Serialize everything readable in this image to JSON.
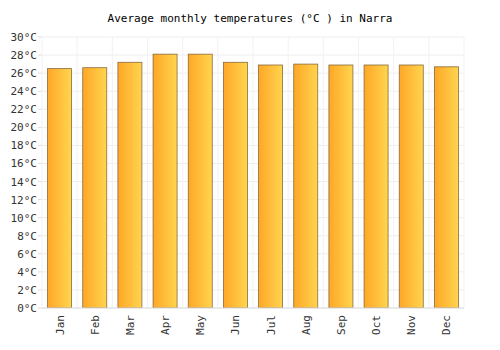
{
  "chart_data": {
    "type": "bar",
    "title": "Average monthly temperatures (°C ) in Narra",
    "categories": [
      "Jan",
      "Feb",
      "Mar",
      "Apr",
      "May",
      "Jun",
      "Jul",
      "Aug",
      "Sep",
      "Oct",
      "Nov",
      "Dec"
    ],
    "values": [
      26.5,
      26.6,
      27.2,
      28.1,
      28.1,
      27.2,
      26.9,
      27.0,
      26.9,
      26.9,
      26.9,
      26.7
    ],
    "color": "#ffa726",
    "ylim": [
      0,
      30
    ],
    "yticks": [
      {
        "value": 0,
        "label": "0°C"
      },
      {
        "value": 2,
        "label": "2°C"
      },
      {
        "value": 4,
        "label": "4°C"
      },
      {
        "value": 6,
        "label": "6°C"
      },
      {
        "value": 8,
        "label": "8°C"
      },
      {
        "value": 10,
        "label": "10°C"
      },
      {
        "value": 12,
        "label": "12°C"
      },
      {
        "value": 14,
        "label": "14°C"
      },
      {
        "value": 16,
        "label": "16°C"
      },
      {
        "value": 18,
        "label": "18°C"
      },
      {
        "value": 20,
        "label": "20°C"
      },
      {
        "value": 22,
        "label": "22°C"
      },
      {
        "value": 24,
        "label": "24°C"
      },
      {
        "value": 26,
        "label": "26°C"
      },
      {
        "value": 28,
        "label": "28°C"
      },
      {
        "value": 30,
        "label": "30°C"
      }
    ],
    "grid": true
  }
}
